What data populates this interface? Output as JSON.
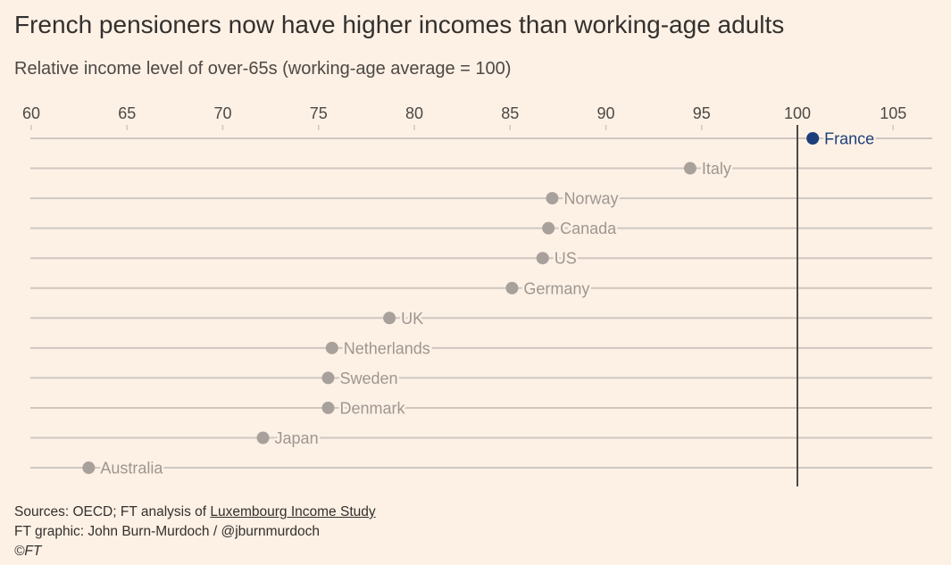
{
  "title": "French pensioners now have higher incomes than working-age adults",
  "subtitle": "Relative income level of over-65s (working-age average = 100)",
  "footer": {
    "source_prefix": "Sources: OECD; FT analysis of ",
    "source_link": "Luxembourg Income Study",
    "credit": "FT graphic: John Burn-Murdoch / @jburnmurdoch",
    "copyright": "©FT"
  },
  "colors": {
    "background": "#fdf1e5",
    "highlight": "#1c3f7c",
    "dot": "#a8a09a",
    "label": "#9e9690",
    "gridline": "#cfc7c0",
    "reference_line": "#4d4845"
  },
  "chart_data": {
    "type": "scatter",
    "xlim": [
      60,
      107
    ],
    "ticks": [
      60,
      65,
      70,
      75,
      80,
      85,
      90,
      95,
      100,
      105
    ],
    "reference_value": 100,
    "highlight": "France",
    "points": [
      {
        "country": "France",
        "value": 100.8
      },
      {
        "country": "Italy",
        "value": 94.4
      },
      {
        "country": "Norway",
        "value": 87.2
      },
      {
        "country": "Canada",
        "value": 87.0
      },
      {
        "country": "US",
        "value": 86.7
      },
      {
        "country": "Germany",
        "value": 85.1
      },
      {
        "country": "UK",
        "value": 78.7
      },
      {
        "country": "Netherlands",
        "value": 75.7
      },
      {
        "country": "Sweden",
        "value": 75.5
      },
      {
        "country": "Denmark",
        "value": 75.5
      },
      {
        "country": "Japan",
        "value": 72.1
      },
      {
        "country": "Australia",
        "value": 63.0
      }
    ]
  }
}
